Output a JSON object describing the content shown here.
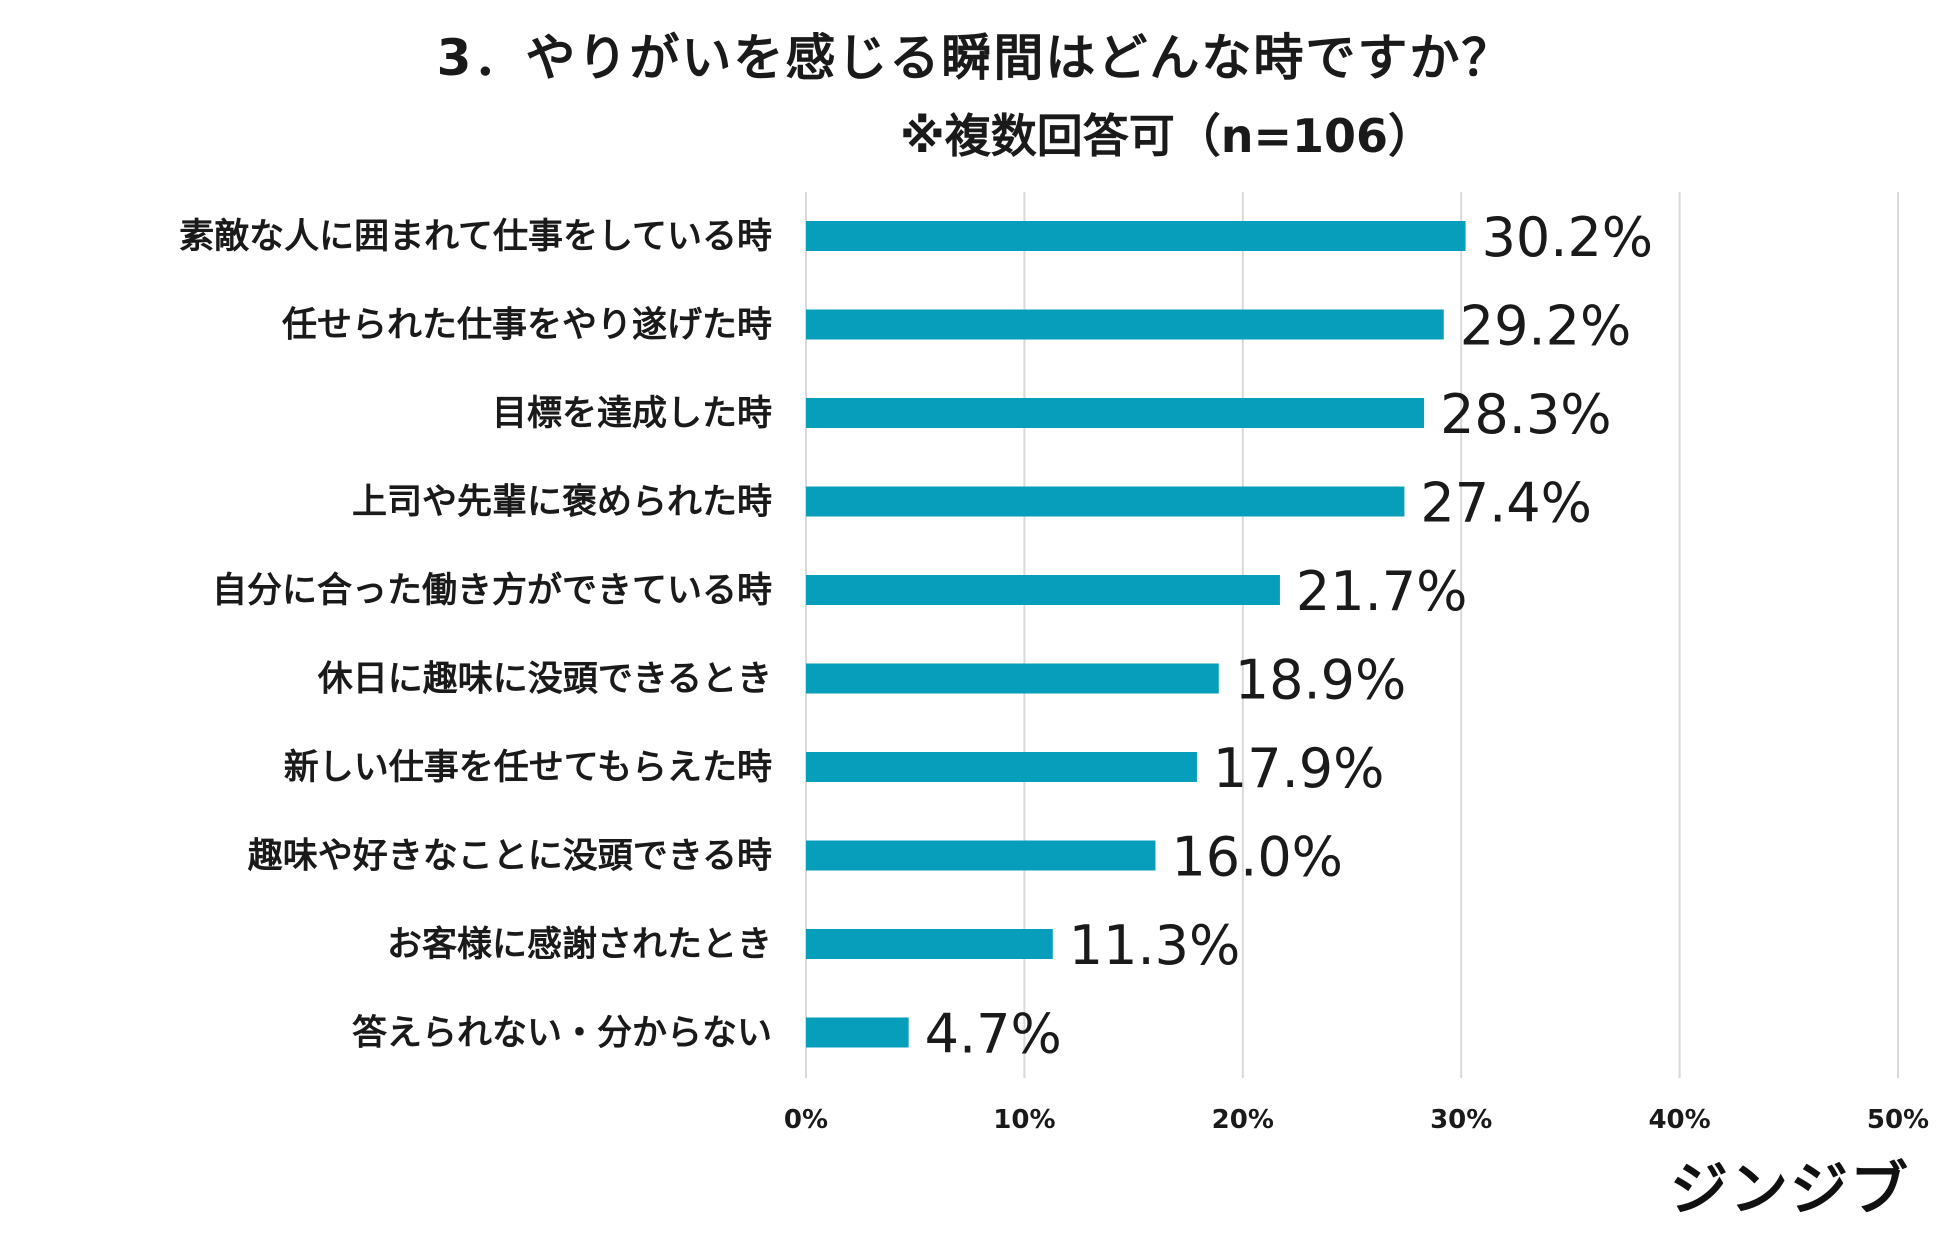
{
  "chart_data": {
    "type": "bar",
    "orientation": "horizontal",
    "title": "3．やりがいを感じる瞬間はどんな時ですか？",
    "subtitle": "※複数回答可（n=106）",
    "categories": [
      "素敵な人に囲まれて仕事をしている時",
      "任せられた仕事をやり遂げた時",
      "目標を達成した時",
      "上司や先輩に褒められた時",
      "自分に合った働き方ができている時",
      "休日に趣味に没頭できるとき",
      "新しい仕事を任せてもらえた時",
      "趣味や好きなことに没頭できる時",
      "お客様に感謝されたとき",
      "答えられない・分からない"
    ],
    "values": [
      30.2,
      29.2,
      28.3,
      27.4,
      21.7,
      18.9,
      17.9,
      16.0,
      11.3,
      4.7
    ],
    "value_labels": [
      "30.2%",
      "29.2%",
      "28.3%",
      "27.4%",
      "21.7%",
      "18.9%",
      "17.9%",
      "16.0%",
      "11.3%",
      "4.7%"
    ],
    "xlim": [
      0,
      50
    ],
    "xticks": [
      0,
      10,
      20,
      30,
      40,
      50
    ],
    "xtick_labels": [
      "0%",
      "10%",
      "20%",
      "30%",
      "40%",
      "50%"
    ],
    "grid": "vertical",
    "bar_color": "#069eba",
    "grid_color": "#d9d9d9"
  },
  "brand": "ジンジブ"
}
